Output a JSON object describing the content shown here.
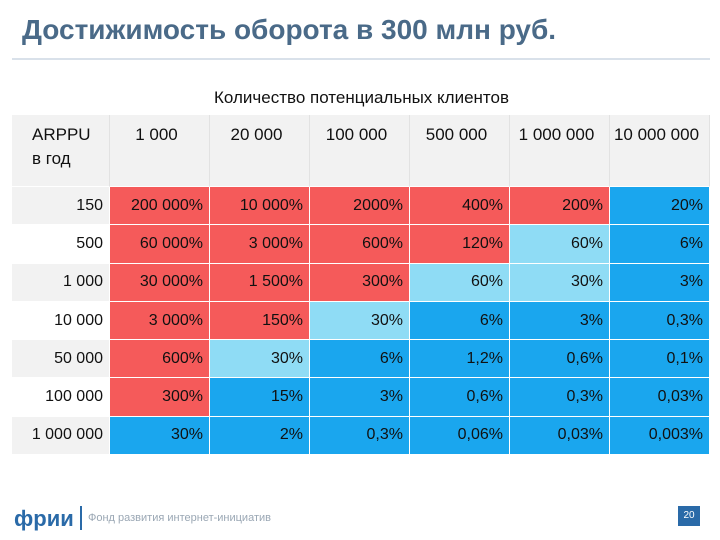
{
  "slide": {
    "title": "Достижимость оборота в 300 млн руб.",
    "subtitle": "Количество потенциальных клиентов",
    "page_number": "20"
  },
  "footer": {
    "logo": "фрии",
    "org_name": "Фонд развития интернет-инициатив"
  },
  "colors": {
    "red": "#f55a5a",
    "pink": "#f79a9a",
    "light_blue": "#8fdcf5",
    "blue": "#1aa6ee"
  },
  "table": {
    "corner_label": "ARPPU в год",
    "columns": [
      "1 000",
      "20 000",
      "100 000",
      "500 000",
      "1 000 000",
      "10 000 000"
    ],
    "rows": [
      {
        "label": "150",
        "cells": [
          {
            "value": "200 000%",
            "color": "red"
          },
          {
            "value": "10 000%",
            "color": "red"
          },
          {
            "value": "2000%",
            "color": "red"
          },
          {
            "value": "400%",
            "color": "red"
          },
          {
            "value": "200%",
            "color": "red"
          },
          {
            "value": "20%",
            "color": "blue"
          }
        ]
      },
      {
        "label": "500",
        "cells": [
          {
            "value": "60 000%",
            "color": "red"
          },
          {
            "value": "3 000%",
            "color": "red"
          },
          {
            "value": "600%",
            "color": "red"
          },
          {
            "value": "120%",
            "color": "red"
          },
          {
            "value": "60%",
            "color": "light_blue"
          },
          {
            "value": "6%",
            "color": "blue"
          }
        ]
      },
      {
        "label": "1 000",
        "cells": [
          {
            "value": "30 000%",
            "color": "red"
          },
          {
            "value": "1 500%",
            "color": "red"
          },
          {
            "value": "300%",
            "color": "red"
          },
          {
            "value": "60%",
            "color": "light_blue"
          },
          {
            "value": "30%",
            "color": "light_blue"
          },
          {
            "value": "3%",
            "color": "blue"
          }
        ]
      },
      {
        "label": "10 000",
        "cells": [
          {
            "value": "3 000%",
            "color": "red"
          },
          {
            "value": "150%",
            "color": "red"
          },
          {
            "value": "30%",
            "color": "light_blue"
          },
          {
            "value": "6%",
            "color": "blue"
          },
          {
            "value": "3%",
            "color": "blue"
          },
          {
            "value": "0,3%",
            "color": "blue"
          }
        ]
      },
      {
        "label": "50 000",
        "cells": [
          {
            "value": "600%",
            "color": "red"
          },
          {
            "value": "30%",
            "color": "light_blue"
          },
          {
            "value": "6%",
            "color": "blue"
          },
          {
            "value": "1,2%",
            "color": "blue"
          },
          {
            "value": "0,6%",
            "color": "blue"
          },
          {
            "value": "0,1%",
            "color": "blue"
          }
        ]
      },
      {
        "label": "100 000",
        "cells": [
          {
            "value": "300%",
            "color": "red"
          },
          {
            "value": "15%",
            "color": "blue"
          },
          {
            "value": "3%",
            "color": "blue"
          },
          {
            "value": "0,6%",
            "color": "blue"
          },
          {
            "value": "0,3%",
            "color": "blue"
          },
          {
            "value": "0,03%",
            "color": "blue"
          }
        ]
      },
      {
        "label": "1 000 000",
        "cells": [
          {
            "value": "30%",
            "color": "blue"
          },
          {
            "value": "2%",
            "color": "blue"
          },
          {
            "value": "0,3%",
            "color": "blue"
          },
          {
            "value": "0,06%",
            "color": "blue"
          },
          {
            "value": "0,03%",
            "color": "blue"
          },
          {
            "value": "0,003%",
            "color": "blue"
          }
        ]
      }
    ]
  }
}
